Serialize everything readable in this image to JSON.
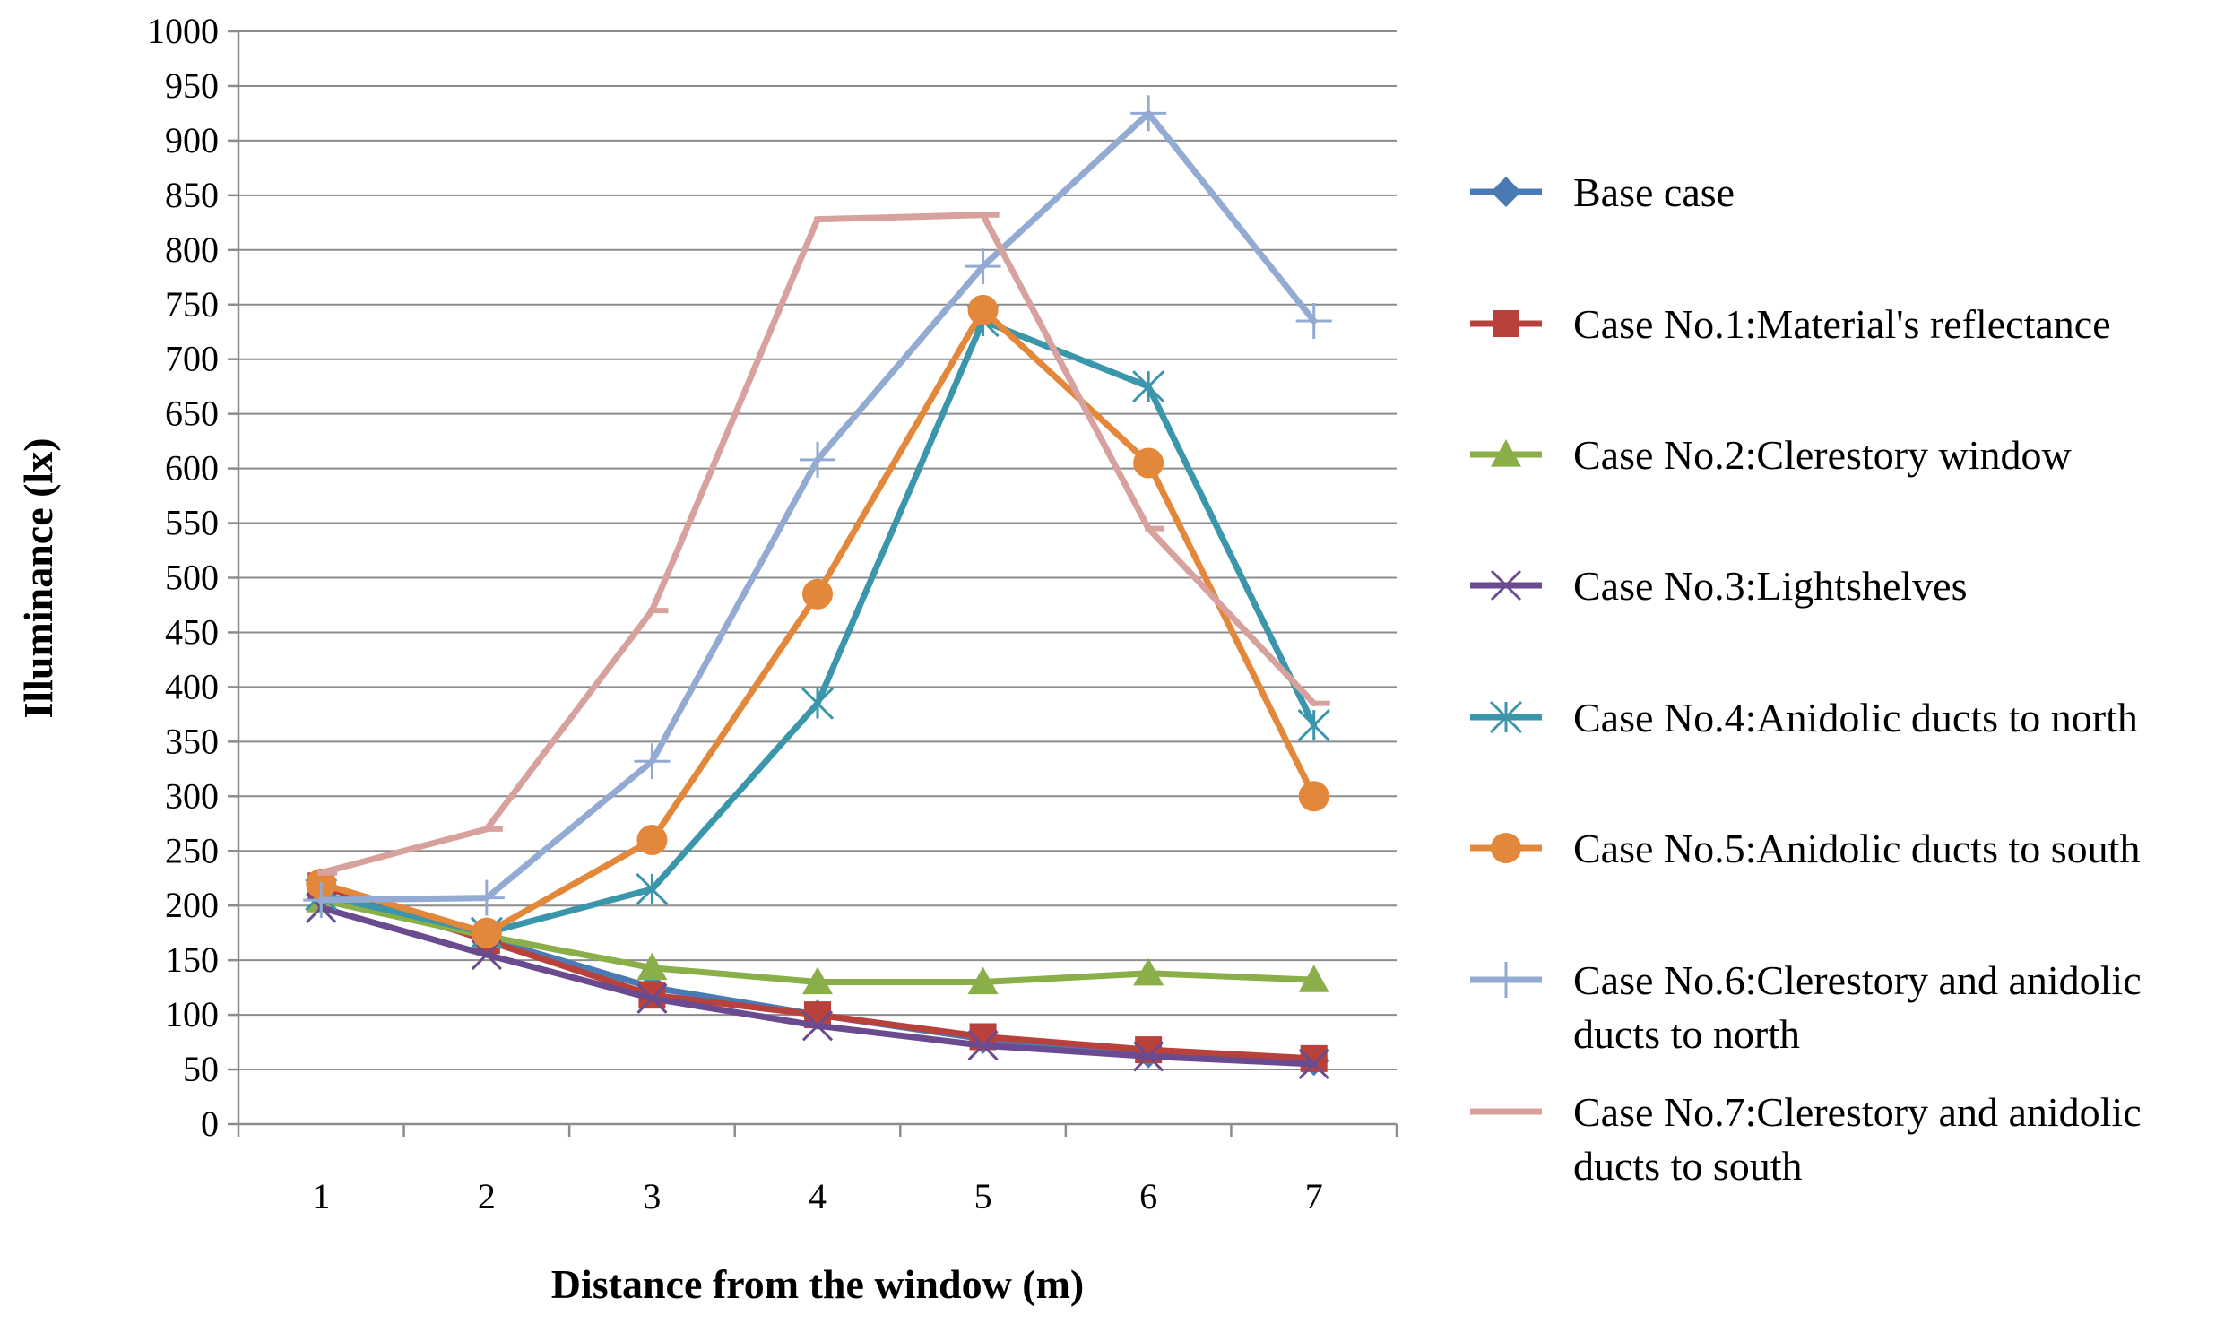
{
  "chart_data": {
    "type": "line",
    "title": "",
    "xlabel": "Distance from the window (m)",
    "ylabel": "Illuminance (lx)",
    "categories": [
      "1",
      "2",
      "3",
      "4",
      "5",
      "6",
      "7"
    ],
    "ylim": [
      0,
      1000
    ],
    "yticks": [
      "0",
      "50",
      "100",
      "150",
      "200",
      "250",
      "300",
      "350",
      "400",
      "450",
      "500",
      "550",
      "600",
      "650",
      "700",
      "750",
      "800",
      "850",
      "900",
      "950",
      "1000"
    ],
    "grid": true,
    "legend_position": "right",
    "series": [
      {
        "name": "Base case",
        "color": "#4a7ab4",
        "marker": "diamond",
        "values": [
          210,
          170,
          125,
          100,
          78,
          65,
          58
        ]
      },
      {
        "name": "Case No.1:Material's reflectance",
        "color": "#b9413c",
        "marker": "square",
        "values": [
          218,
          168,
          118,
          100,
          80,
          68,
          60
        ]
      },
      {
        "name": "Case No.2:Clerestory window",
        "color": "#8aae48",
        "marker": "triangle",
        "values": [
          205,
          172,
          143,
          130,
          130,
          138,
          132
        ]
      },
      {
        "name": "Case No.3:Lightshelves",
        "color": "#6a4b8f",
        "marker": "x",
        "values": [
          198,
          155,
          115,
          90,
          72,
          62,
          55
        ]
      },
      {
        "name": "Case No.4:Anidolic ducts to north",
        "color": "#3b96ac",
        "marker": "asterisk",
        "values": [
          210,
          175,
          215,
          385,
          735,
          675,
          365
        ]
      },
      {
        "name": "Case No.5:Anidolic ducts to south",
        "color": "#e3873a",
        "marker": "circle",
        "values": [
          220,
          175,
          260,
          485,
          745,
          605,
          300
        ]
      },
      {
        "name": "Case No.6:Clerestory and anidolic ducts to north",
        "color": "#93abd2",
        "marker": "plus",
        "values": [
          205,
          207,
          332,
          608,
          785,
          925,
          735
        ]
      },
      {
        "name": "Case No.7:Clerestory and anidolic ducts to south",
        "color": "#d7a19d",
        "marker": "dash",
        "values": [
          230,
          270,
          470,
          828,
          832,
          545,
          385
        ]
      }
    ],
    "legend_labels": [
      [
        "Base case"
      ],
      [
        "Case No.1:Material's reflectance"
      ],
      [
        "Case No.2:Clerestory window"
      ],
      [
        "Case No.3:Lightshelves"
      ],
      [
        "Case No.4:Anidolic ducts to north"
      ],
      [
        "Case No.5:Anidolic ducts to south"
      ],
      [
        "Case No.6:Clerestory and anidolic",
        "ducts to north"
      ],
      [
        "Case No.7:Clerestory and anidolic",
        "ducts to south"
      ]
    ]
  }
}
